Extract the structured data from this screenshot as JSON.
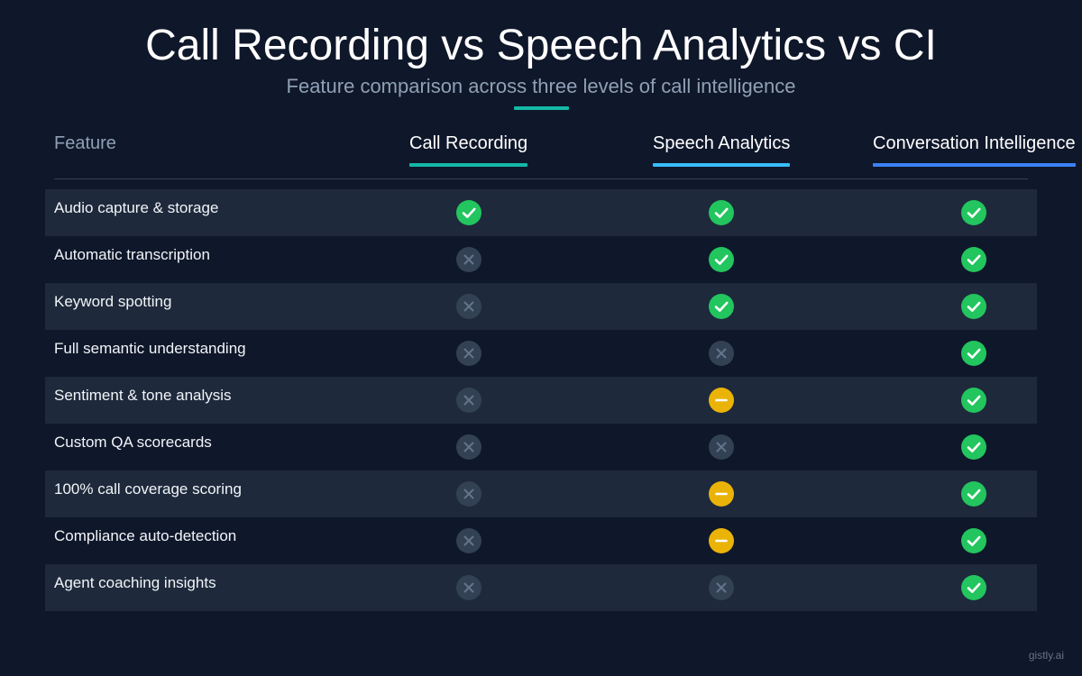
{
  "title": "Call Recording vs Speech Analytics vs CI",
  "subtitle": "Feature comparison across three levels of call intelligence",
  "header": {
    "feature": "Feature",
    "columns": [
      "Call Recording",
      "Speech Analytics",
      "Conversation Intelligence"
    ]
  },
  "colors": {
    "background": "#0f172a",
    "row_alt": "#1e293b",
    "yes": "#22c55e",
    "no": "#334155",
    "partial": "#eab308",
    "col_call_recording": "#14b8a6",
    "col_speech_analytics": "#38bdf8",
    "col_conversation_intelligence": "#3b82f6"
  },
  "icons": {
    "yes": "check-icon",
    "no": "x-icon",
    "partial": "minus-icon"
  },
  "rows": [
    {
      "feature": "Audio capture & storage",
      "values": [
        "yes",
        "yes",
        "yes"
      ]
    },
    {
      "feature": "Automatic transcription",
      "values": [
        "no",
        "yes",
        "yes"
      ]
    },
    {
      "feature": "Keyword spotting",
      "values": [
        "no",
        "yes",
        "yes"
      ]
    },
    {
      "feature": "Full semantic understanding",
      "values": [
        "no",
        "no",
        "yes"
      ]
    },
    {
      "feature": "Sentiment & tone analysis",
      "values": [
        "no",
        "partial",
        "yes"
      ]
    },
    {
      "feature": "Custom QA scorecards",
      "values": [
        "no",
        "no",
        "yes"
      ]
    },
    {
      "feature": "100% call coverage scoring",
      "values": [
        "no",
        "partial",
        "yes"
      ]
    },
    {
      "feature": "Compliance auto-detection",
      "values": [
        "no",
        "partial",
        "yes"
      ]
    },
    {
      "feature": "Agent coaching insights",
      "values": [
        "no",
        "no",
        "yes"
      ]
    }
  ],
  "footer": "gistly.ai"
}
